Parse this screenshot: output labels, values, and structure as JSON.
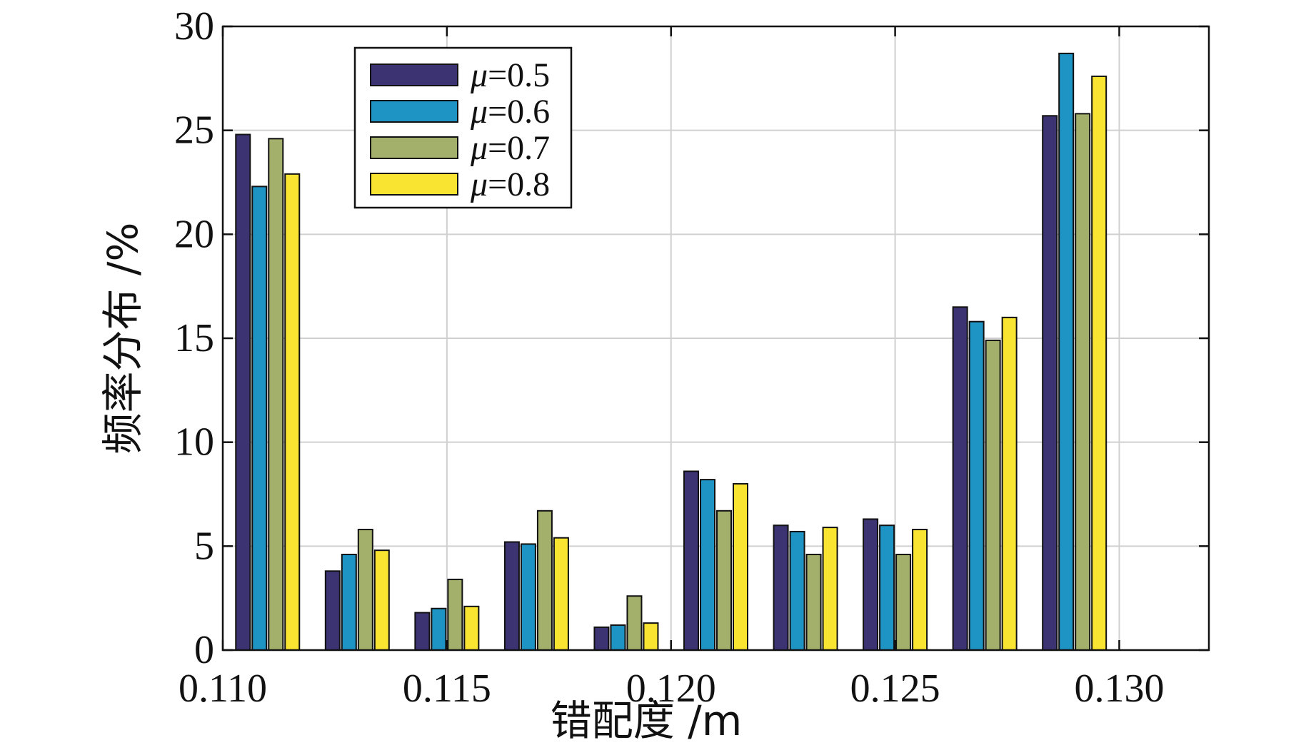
{
  "chart_data": {
    "type": "bar",
    "title": "",
    "xlabel": "错配度 /m",
    "ylabel": "频率分布 /%",
    "x_ticks": [
      "0.110",
      "0.115",
      "0.120",
      "0.125",
      "0.130"
    ],
    "y_ticks": [
      "0",
      "5",
      "10",
      "15",
      "20",
      "25",
      "30"
    ],
    "xlim": [
      0.11,
      0.132
    ],
    "ylim": [
      0,
      30
    ],
    "grid": true,
    "legend_position": "top-left",
    "categories": [
      0.111,
      0.113,
      0.115,
      0.117,
      0.119,
      0.121,
      0.123,
      0.125,
      0.127,
      0.129
    ],
    "series": [
      {
        "name": "μ=0.5",
        "symbol": "μ",
        "suffix": "=0.5",
        "color": "#3b3372",
        "values": [
          24.8,
          3.8,
          1.8,
          5.2,
          1.1,
          8.6,
          6.0,
          6.3,
          16.5,
          25.7
        ]
      },
      {
        "name": "μ=0.6",
        "symbol": "μ",
        "suffix": "=0.6",
        "color": "#1d94c4",
        "values": [
          22.3,
          4.6,
          2.0,
          5.1,
          1.2,
          8.2,
          5.7,
          6.0,
          15.8,
          28.7
        ]
      },
      {
        "name": "μ=0.7",
        "symbol": "μ",
        "suffix": "=0.7",
        "color": "#a3b06b",
        "values": [
          24.6,
          5.8,
          3.4,
          6.7,
          2.6,
          6.7,
          4.6,
          4.6,
          14.9,
          25.8
        ]
      },
      {
        "name": "μ=0.8",
        "symbol": "μ",
        "suffix": "=0.8",
        "color": "#f8e431",
        "values": [
          22.9,
          4.8,
          2.1,
          5.4,
          1.3,
          8.0,
          5.9,
          5.8,
          16.0,
          27.6
        ]
      }
    ]
  }
}
